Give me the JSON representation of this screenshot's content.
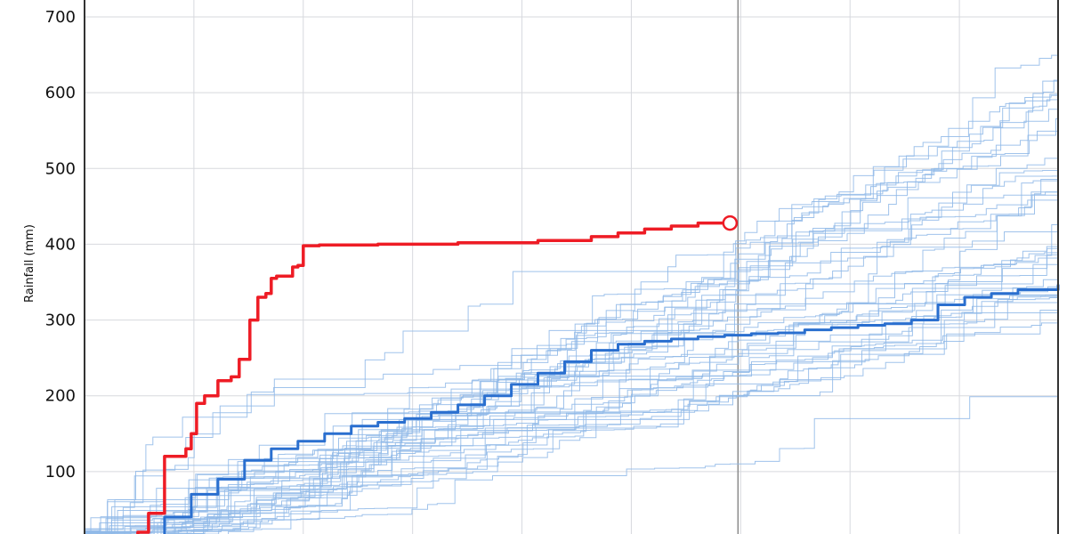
{
  "chart_data": {
    "type": "line",
    "title": "",
    "xlabel": "",
    "ylabel": "Rainfall (mm)",
    "ylim": [
      -20,
      730
    ],
    "xlim": [
      0,
      365
    ],
    "grid": true,
    "y_ticks": [
      100,
      200,
      300,
      400,
      500,
      600,
      700
    ],
    "x_gridlines": [
      0,
      41,
      82,
      123,
      164,
      205,
      246,
      287,
      328,
      369
    ],
    "current_day_marker": 245,
    "colors": {
      "current_year": "#ee1c25",
      "median": "#2a6fcf",
      "historical": "#8fb8e8",
      "grid": "#d7d9de",
      "axis": "#333333"
    },
    "series": [
      {
        "role": "current-year",
        "x": [
          0,
          5,
          12,
          16,
          20,
          24,
          30,
          32,
          38,
          40,
          42,
          45,
          50,
          52,
          55,
          58,
          62,
          65,
          68,
          70,
          72,
          74,
          78,
          80,
          82,
          85,
          88,
          93,
          100,
          110,
          140,
          170,
          180,
          190,
          200,
          210,
          220,
          230,
          240,
          242
        ],
        "values": [
          0,
          0,
          3,
          8,
          20,
          45,
          120,
          120,
          130,
          150,
          190,
          200,
          220,
          220,
          225,
          248,
          300,
          330,
          335,
          355,
          358,
          358,
          370,
          372,
          398,
          398,
          399,
          399,
          399,
          400,
          402,
          405,
          405,
          410,
          415,
          420,
          424,
          428,
          428,
          428
        ]
      },
      {
        "role": "median",
        "x": [
          0,
          10,
          20,
          30,
          40,
          50,
          60,
          70,
          80,
          90,
          100,
          110,
          120,
          130,
          140,
          150,
          160,
          170,
          180,
          190,
          200,
          210,
          220,
          230,
          240,
          250,
          260,
          270,
          280,
          290,
          300,
          310,
          320,
          330,
          340,
          350,
          365
        ],
        "values": [
          0,
          3,
          12,
          40,
          70,
          90,
          115,
          130,
          140,
          150,
          160,
          165,
          170,
          178,
          188,
          200,
          215,
          230,
          245,
          260,
          268,
          272,
          275,
          278,
          280,
          282,
          283,
          287,
          290,
          293,
          295,
          300,
          320,
          330,
          335,
          340,
          347
        ]
      }
    ],
    "annotations": [
      {
        "type": "end-marker",
        "series": "current-year",
        "x": 242,
        "y": 428
      }
    ]
  }
}
